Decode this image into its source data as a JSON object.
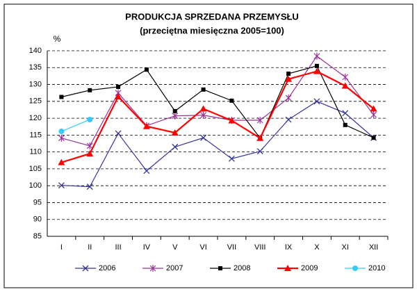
{
  "chart_data": {
    "type": "line",
    "title": "PRODUKCJA SPRZEDANA PRZEMYSŁU",
    "subtitle": "(przeciętna miesięczna 2005=100)",
    "ylabel": "%",
    "categories": [
      "I",
      "II",
      "III",
      "IV",
      "V",
      "VI",
      "VII",
      "VIII",
      "IX",
      "X",
      "XI",
      "XII"
    ],
    "ylim": [
      85,
      140
    ],
    "yticks": [
      85,
      90,
      95,
      100,
      105,
      110,
      115,
      120,
      125,
      130,
      135,
      140
    ],
    "grid": true,
    "series": [
      {
        "name": "2006",
        "color": "#333399",
        "marker": "x",
        "values": [
          100.1,
          99.7,
          115.5,
          104.4,
          111.5,
          114.2,
          108,
          110.2,
          119.6,
          125,
          121.5,
          114.2
        ]
      },
      {
        "name": "2007",
        "color": "#993399",
        "marker": "star",
        "values": [
          114.1,
          111.8,
          127.5,
          117.8,
          120.7,
          120.9,
          119.4,
          119.4,
          126,
          138.4,
          132.2,
          121
        ]
      },
      {
        "name": "2008",
        "color": "#000000",
        "marker": "square",
        "values": [
          126.3,
          128.3,
          129.3,
          134.4,
          122.1,
          128.5,
          125.2,
          114.1,
          133.2,
          135.5,
          118,
          114.2
        ]
      },
      {
        "name": "2009",
        "color": "#ff0000",
        "marker": "triangle",
        "values": [
          106.9,
          109.5,
          126.4,
          117.6,
          115.7,
          122.8,
          119.3,
          114.1,
          131.6,
          133.9,
          129.6,
          122.8
        ]
      },
      {
        "name": "2010",
        "color": "#33ccff",
        "marker": "circle",
        "values": [
          116.1,
          119.6,
          null,
          null,
          null,
          null,
          null,
          null,
          null,
          null,
          null,
          null
        ]
      }
    ]
  }
}
